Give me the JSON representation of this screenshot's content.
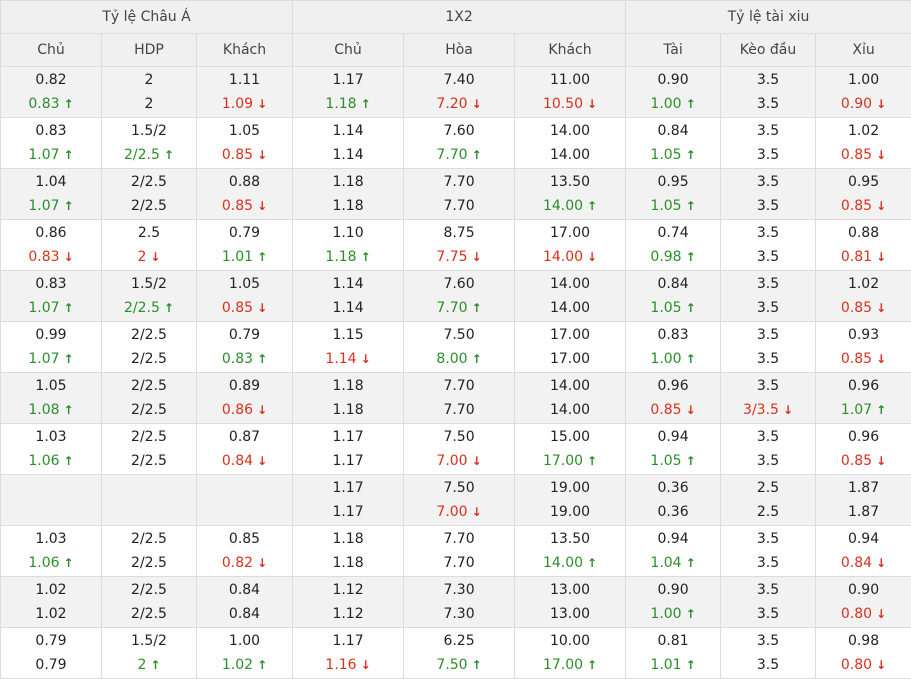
{
  "groups": [
    "Tỷ lệ Châu Á",
    "1X2",
    "Tỷ lệ tài xiu"
  ],
  "columns": [
    "Chủ",
    "HDP",
    "Khách",
    "Chủ",
    "Hòa",
    "Khách",
    "Tài",
    "Kèo đầu",
    "Xỉu"
  ],
  "rows": [
    {
      "cells": [
        [
          "0.82",
          ""
        ],
        [
          "0.83",
          "up"
        ],
        [
          "2",
          ""
        ],
        [
          "2",
          ""
        ],
        [
          "1.11",
          ""
        ],
        [
          "1.09",
          "down"
        ],
        [
          "1.17",
          ""
        ],
        [
          "1.18",
          "up"
        ],
        [
          "7.40",
          ""
        ],
        [
          "7.20",
          "down"
        ],
        [
          "11.00",
          ""
        ],
        [
          "10.50",
          "down"
        ],
        [
          "0.90",
          ""
        ],
        [
          "1.00",
          "up"
        ],
        [
          "3.5",
          ""
        ],
        [
          "3.5",
          ""
        ],
        [
          "1.00",
          ""
        ],
        [
          "0.90",
          "down"
        ]
      ]
    },
    {
      "cells": [
        [
          "0.83",
          ""
        ],
        [
          "1.07",
          "up"
        ],
        [
          "1.5/2",
          ""
        ],
        [
          "2/2.5",
          "up"
        ],
        [
          "1.05",
          ""
        ],
        [
          "0.85",
          "down"
        ],
        [
          "1.14",
          ""
        ],
        [
          "1.14",
          ""
        ],
        [
          "7.60",
          ""
        ],
        [
          "7.70",
          "up"
        ],
        [
          "14.00",
          ""
        ],
        [
          "14.00",
          ""
        ],
        [
          "0.84",
          ""
        ],
        [
          "1.05",
          "up"
        ],
        [
          "3.5",
          ""
        ],
        [
          "3.5",
          ""
        ],
        [
          "1.02",
          ""
        ],
        [
          "0.85",
          "down"
        ]
      ]
    },
    {
      "cells": [
        [
          "1.04",
          ""
        ],
        [
          "1.07",
          "up"
        ],
        [
          "2/2.5",
          ""
        ],
        [
          "2/2.5",
          ""
        ],
        [
          "0.88",
          ""
        ],
        [
          "0.85",
          "down"
        ],
        [
          "1.18",
          ""
        ],
        [
          "1.18",
          ""
        ],
        [
          "7.70",
          ""
        ],
        [
          "7.70",
          ""
        ],
        [
          "13.50",
          ""
        ],
        [
          "14.00",
          "up"
        ],
        [
          "0.95",
          ""
        ],
        [
          "1.05",
          "up"
        ],
        [
          "3.5",
          ""
        ],
        [
          "3.5",
          ""
        ],
        [
          "0.95",
          ""
        ],
        [
          "0.85",
          "down"
        ]
      ]
    },
    {
      "cells": [
        [
          "0.86",
          ""
        ],
        [
          "0.83",
          "down"
        ],
        [
          "2.5",
          ""
        ],
        [
          "2",
          "down"
        ],
        [
          "0.79",
          ""
        ],
        [
          "1.01",
          "up"
        ],
        [
          "1.10",
          ""
        ],
        [
          "1.18",
          "up"
        ],
        [
          "8.75",
          ""
        ],
        [
          "7.75",
          "down"
        ],
        [
          "17.00",
          ""
        ],
        [
          "14.00",
          "down"
        ],
        [
          "0.74",
          ""
        ],
        [
          "0.98",
          "up"
        ],
        [
          "3.5",
          ""
        ],
        [
          "3.5",
          ""
        ],
        [
          "0.88",
          ""
        ],
        [
          "0.81",
          "down"
        ]
      ]
    },
    {
      "cells": [
        [
          "0.83",
          ""
        ],
        [
          "1.07",
          "up"
        ],
        [
          "1.5/2",
          ""
        ],
        [
          "2/2.5",
          "up"
        ],
        [
          "1.05",
          ""
        ],
        [
          "0.85",
          "down"
        ],
        [
          "1.14",
          ""
        ],
        [
          "1.14",
          ""
        ],
        [
          "7.60",
          ""
        ],
        [
          "7.70",
          "up"
        ],
        [
          "14.00",
          ""
        ],
        [
          "14.00",
          ""
        ],
        [
          "0.84",
          ""
        ],
        [
          "1.05",
          "up"
        ],
        [
          "3.5",
          ""
        ],
        [
          "3.5",
          ""
        ],
        [
          "1.02",
          ""
        ],
        [
          "0.85",
          "down"
        ]
      ]
    },
    {
      "cells": [
        [
          "0.99",
          ""
        ],
        [
          "1.07",
          "up"
        ],
        [
          "2/2.5",
          ""
        ],
        [
          "2/2.5",
          ""
        ],
        [
          "0.79",
          ""
        ],
        [
          "0.83",
          "up"
        ],
        [
          "1.15",
          ""
        ],
        [
          "1.14",
          "down"
        ],
        [
          "7.50",
          ""
        ],
        [
          "8.00",
          "up"
        ],
        [
          "17.00",
          ""
        ],
        [
          "17.00",
          ""
        ],
        [
          "0.83",
          ""
        ],
        [
          "1.00",
          "up"
        ],
        [
          "3.5",
          ""
        ],
        [
          "3.5",
          ""
        ],
        [
          "0.93",
          ""
        ],
        [
          "0.85",
          "down"
        ]
      ]
    },
    {
      "cells": [
        [
          "1.05",
          ""
        ],
        [
          "1.08",
          "up"
        ],
        [
          "2/2.5",
          ""
        ],
        [
          "2/2.5",
          ""
        ],
        [
          "0.89",
          ""
        ],
        [
          "0.86",
          "down"
        ],
        [
          "1.18",
          ""
        ],
        [
          "1.18",
          ""
        ],
        [
          "7.70",
          ""
        ],
        [
          "7.70",
          ""
        ],
        [
          "14.00",
          ""
        ],
        [
          "14.00",
          ""
        ],
        [
          "0.96",
          ""
        ],
        [
          "0.85",
          "down"
        ],
        [
          "3.5",
          ""
        ],
        [
          "3/3.5",
          "down"
        ],
        [
          "0.96",
          ""
        ],
        [
          "1.07",
          "up"
        ]
      ]
    },
    {
      "cells": [
        [
          "1.03",
          ""
        ],
        [
          "1.06",
          "up"
        ],
        [
          "2/2.5",
          ""
        ],
        [
          "2/2.5",
          ""
        ],
        [
          "0.87",
          ""
        ],
        [
          "0.84",
          "down"
        ],
        [
          "1.17",
          ""
        ],
        [
          "1.17",
          ""
        ],
        [
          "7.50",
          ""
        ],
        [
          "7.00",
          "down"
        ],
        [
          "15.00",
          ""
        ],
        [
          "17.00",
          "up"
        ],
        [
          "0.94",
          ""
        ],
        [
          "1.05",
          "up"
        ],
        [
          "3.5",
          ""
        ],
        [
          "3.5",
          ""
        ],
        [
          "0.96",
          ""
        ],
        [
          "0.85",
          "down"
        ]
      ]
    },
    {
      "cells": [
        [
          "",
          ""
        ],
        [
          "",
          ""
        ],
        [
          "",
          ""
        ],
        [
          "",
          ""
        ],
        [
          "",
          ""
        ],
        [
          "",
          ""
        ],
        [
          "1.17",
          ""
        ],
        [
          "1.17",
          ""
        ],
        [
          "7.50",
          ""
        ],
        [
          "7.00",
          "down"
        ],
        [
          "19.00",
          ""
        ],
        [
          "19.00",
          ""
        ],
        [
          "0.36",
          ""
        ],
        [
          "0.36",
          ""
        ],
        [
          "2.5",
          ""
        ],
        [
          "2.5",
          ""
        ],
        [
          "1.87",
          ""
        ],
        [
          "1.87",
          ""
        ]
      ]
    },
    {
      "cells": [
        [
          "1.03",
          ""
        ],
        [
          "1.06",
          "up"
        ],
        [
          "2/2.5",
          ""
        ],
        [
          "2/2.5",
          ""
        ],
        [
          "0.85",
          ""
        ],
        [
          "0.82",
          "down"
        ],
        [
          "1.18",
          ""
        ],
        [
          "1.18",
          ""
        ],
        [
          "7.70",
          ""
        ],
        [
          "7.70",
          ""
        ],
        [
          "13.50",
          ""
        ],
        [
          "14.00",
          "up"
        ],
        [
          "0.94",
          ""
        ],
        [
          "1.04",
          "up"
        ],
        [
          "3.5",
          ""
        ],
        [
          "3.5",
          ""
        ],
        [
          "0.94",
          ""
        ],
        [
          "0.84",
          "down"
        ]
      ]
    },
    {
      "cells": [
        [
          "1.02",
          ""
        ],
        [
          "1.02",
          ""
        ],
        [
          "2/2.5",
          ""
        ],
        [
          "2/2.5",
          ""
        ],
        [
          "0.84",
          ""
        ],
        [
          "0.84",
          ""
        ],
        [
          "1.12",
          ""
        ],
        [
          "1.12",
          ""
        ],
        [
          "7.30",
          ""
        ],
        [
          "7.30",
          ""
        ],
        [
          "13.00",
          ""
        ],
        [
          "13.00",
          ""
        ],
        [
          "0.90",
          ""
        ],
        [
          "1.00",
          "up"
        ],
        [
          "3.5",
          ""
        ],
        [
          "3.5",
          ""
        ],
        [
          "0.90",
          ""
        ],
        [
          "0.80",
          "down"
        ]
      ]
    },
    {
      "cells": [
        [
          "0.79",
          ""
        ],
        [
          "0.79",
          ""
        ],
        [
          "1.5/2",
          ""
        ],
        [
          "2",
          "up"
        ],
        [
          "1.00",
          ""
        ],
        [
          "1.02",
          "up"
        ],
        [
          "1.17",
          ""
        ],
        [
          "1.16",
          "down"
        ],
        [
          "6.25",
          ""
        ],
        [
          "7.50",
          "up"
        ],
        [
          "10.00",
          ""
        ],
        [
          "17.00",
          "up"
        ],
        [
          "0.81",
          ""
        ],
        [
          "1.01",
          "up"
        ],
        [
          "3.5",
          ""
        ],
        [
          "3.5",
          ""
        ],
        [
          "0.98",
          ""
        ],
        [
          "0.80",
          "down"
        ]
      ]
    }
  ],
  "colors": {
    "up": "#2a8f2a",
    "down": "#d9301d",
    "header_bg": "#f0f0f0",
    "alt_row_bg": "#f2f2f2",
    "border": "#dcdcdc"
  },
  "icons": {
    "up": "arrow-up-icon",
    "down": "arrow-down-icon"
  }
}
